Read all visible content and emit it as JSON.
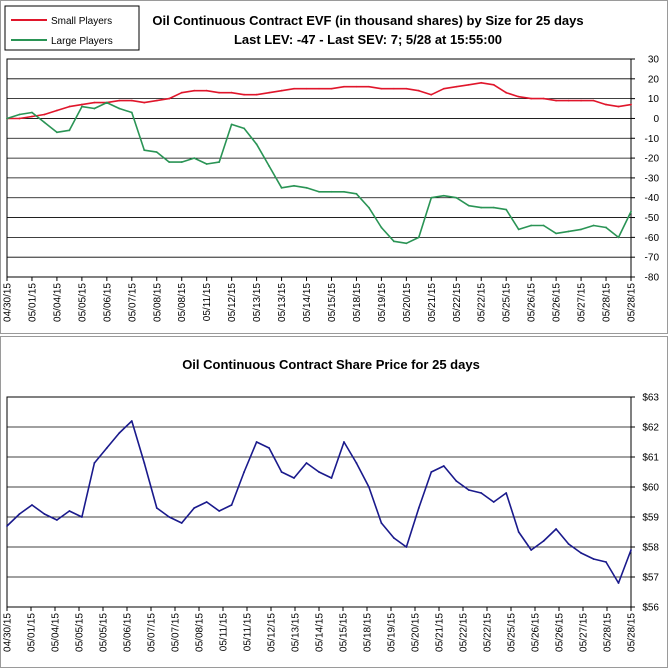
{
  "chart_data": [
    {
      "type": "line",
      "title": "Oil Continuous Contract EVF (in thousand shares) by Size for 25 days",
      "subtitle": "Last LEV: -47 - Last SEV: 7; 5/28 at 15:55:00",
      "legend": {
        "placement": "top-left",
        "entries": [
          "Small Players",
          "Large Players"
        ]
      },
      "x_tick_labels": [
        "04/30/15",
        "05/01/15",
        "05/04/15",
        "05/05/15",
        "05/06/15",
        "05/07/15",
        "05/08/15",
        "05/08/15",
        "05/11/15",
        "05/12/15",
        "05/13/15",
        "05/13/15",
        "05/14/15",
        "05/15/15",
        "05/18/15",
        "05/19/15",
        "05/20/15",
        "05/21/15",
        "05/22/15",
        "05/22/15",
        "05/25/15",
        "05/26/15",
        "05/26/15",
        "05/27/15",
        "05/28/15",
        "05/28/15"
      ],
      "y_axis": {
        "side": "right",
        "range": [
          -80,
          30
        ],
        "ticks": [
          30,
          20,
          10,
          0,
          -10,
          -20,
          -30,
          -40,
          -50,
          -60,
          -70,
          -80
        ]
      },
      "grid": true,
      "x_range": [
        0,
        25
      ],
      "series": [
        {
          "name": "Small Players",
          "color": "#e0162b",
          "x": [
            0,
            0.5,
            1,
            1.5,
            2,
            2.5,
            3,
            3.5,
            4,
            4.5,
            5,
            5.5,
            6,
            6.5,
            7,
            7.5,
            8,
            8.5,
            9,
            9.5,
            10,
            10.5,
            11,
            11.5,
            12,
            12.5,
            13,
            13.5,
            14,
            14.5,
            15,
            15.5,
            16,
            16.5,
            17,
            17.5,
            18,
            18.5,
            19,
            19.5,
            20,
            20.5,
            21,
            21.5,
            22,
            22.5,
            23,
            23.5,
            24,
            24.5,
            25
          ],
          "values": [
            0,
            0,
            1,
            2,
            4,
            6,
            7,
            8,
            8,
            9,
            9,
            8,
            9,
            10,
            13,
            14,
            14,
            13,
            13,
            12,
            12,
            13,
            14,
            15,
            15,
            15,
            15,
            16,
            16,
            16,
            15,
            15,
            15,
            14,
            12,
            15,
            16,
            17,
            18,
            17,
            13,
            11,
            10,
            10,
            9,
            9,
            9,
            9,
            7,
            6,
            7
          ]
        },
        {
          "name": "Large Players",
          "color": "#2a9455",
          "x": [
            0,
            0.5,
            1,
            1.5,
            2,
            2.5,
            3,
            3.5,
            4,
            4.5,
            5,
            5.5,
            6,
            6.5,
            7,
            7.5,
            8,
            8.5,
            9,
            9.5,
            10,
            10.5,
            11,
            11.5,
            12,
            12.5,
            13,
            13.5,
            14,
            14.5,
            15,
            15.5,
            16,
            16.5,
            17,
            17.5,
            18,
            18.5,
            19,
            19.5,
            20,
            20.5,
            21,
            21.5,
            22,
            22.5,
            23,
            23.5,
            24,
            24.5,
            25
          ],
          "values": [
            0,
            2,
            3,
            -2,
            -7,
            -6,
            6,
            5,
            8,
            5,
            3,
            -16,
            -17,
            -22,
            -22,
            -20,
            -23,
            -22,
            -3,
            -5,
            -13,
            -24,
            -35,
            -34,
            -35,
            -37,
            -37,
            -37,
            -38,
            -45,
            -55,
            -62,
            -63,
            -60,
            -40,
            -39,
            -40,
            -44,
            -45,
            -45,
            -46,
            -56,
            -54,
            -54,
            -58,
            -57,
            -56,
            -54,
            -55,
            -60,
            -47
          ]
        }
      ]
    },
    {
      "type": "line",
      "title": "Oil Continuous Contract Share Price for 25 days",
      "x_tick_labels": [
        "04/30/15",
        "05/01/15",
        "05/04/15",
        "05/05/15",
        "05/05/15",
        "05/06/15",
        "05/07/15",
        "05/07/15",
        "05/08/15",
        "05/11/15",
        "05/11/15",
        "05/12/15",
        "05/13/15",
        "05/14/15",
        "05/15/15",
        "05/18/15",
        "05/19/15",
        "05/20/15",
        "05/21/15",
        "05/22/15",
        "05/22/15",
        "05/25/15",
        "05/26/15",
        "05/26/15",
        "05/27/15",
        "05/28/15",
        "05/28/15"
      ],
      "y_axis": {
        "side": "right",
        "range": [
          56,
          63
        ],
        "ticks": [
          "$63",
          "$62",
          "$61",
          "$60",
          "$59",
          "$58",
          "$57",
          "$56"
        ]
      },
      "grid": true,
      "x_range": [
        0,
        25
      ],
      "series": [
        {
          "name": "",
          "color": "#1a1a8c",
          "x": [
            0,
            0.5,
            1,
            1.5,
            2,
            2.5,
            3,
            3.5,
            4,
            4.5,
            5,
            5.5,
            6,
            6.5,
            7,
            7.5,
            8,
            8.5,
            9,
            9.5,
            10,
            10.5,
            11,
            11.5,
            12,
            12.5,
            13,
            13.5,
            14,
            14.5,
            15,
            15.5,
            16,
            16.5,
            17,
            17.5,
            18,
            18.5,
            19,
            19.5,
            20,
            20.5,
            21,
            21.5,
            22,
            22.5,
            23,
            23.5,
            24,
            24.5,
            25
          ],
          "values": [
            58.7,
            59.1,
            59.4,
            59.1,
            58.9,
            59.2,
            59.0,
            60.8,
            61.3,
            61.8,
            62.2,
            60.8,
            59.3,
            59.0,
            58.8,
            59.3,
            59.5,
            59.2,
            59.4,
            60.5,
            61.5,
            61.3,
            60.5,
            60.3,
            60.8,
            60.5,
            60.3,
            61.5,
            60.8,
            60.0,
            58.8,
            58.3,
            58.0,
            59.3,
            60.5,
            60.7,
            60.2,
            59.9,
            59.8,
            59.5,
            59.8,
            58.5,
            57.9,
            58.2,
            58.6,
            58.1,
            57.8,
            57.6,
            57.5,
            56.8,
            57.9
          ]
        }
      ]
    }
  ]
}
